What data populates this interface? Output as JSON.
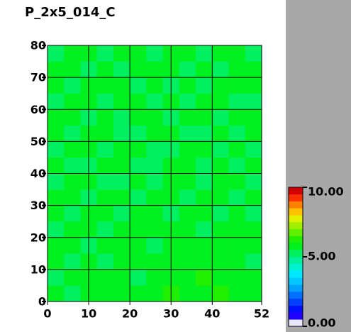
{
  "chart_data": {
    "type": "heatmap",
    "title": "P_2x5_014_C",
    "xlim": [
      0,
      52
    ],
    "ylim": [
      0,
      80
    ],
    "xticks": [
      0,
      10,
      20,
      30,
      40,
      52
    ],
    "yticks": [
      0,
      10,
      20,
      30,
      40,
      50,
      60,
      70,
      80
    ],
    "grid": true,
    "colorbar_lim": [
      0,
      10
    ],
    "colorbar_ticks": [
      {
        "value": 0,
        "label": "0.00"
      },
      {
        "value": 5,
        "label": "5.00"
      },
      {
        "value": 10,
        "label": "10.00"
      }
    ],
    "colormap": [
      "#e8e8ff",
      "#2000ff",
      "#0010ff",
      "#0040ff",
      "#0070ff",
      "#00a0ff",
      "#00c8ff",
      "#00e8ff",
      "#00f0d0",
      "#00f0a0",
      "#00f060",
      "#00f020",
      "#20f000",
      "#60f000",
      "#a0f000",
      "#e0f000",
      "#ffc000",
      "#ff8000",
      "#ff3000",
      "#d00000"
    ],
    "z": [
      [
        5.6,
        5.4,
        5.7,
        5.5,
        5.9,
        5.6,
        5.8,
        6.1,
        5.7,
        5.9,
        6.0,
        5.6,
        5.5
      ],
      [
        5.3,
        5.7,
        5.5,
        5.8,
        5.6,
        5.4,
        5.7,
        5.9,
        5.8,
        6.0,
        5.7,
        5.5,
        5.6
      ],
      [
        5.5,
        5.2,
        5.6,
        5.4,
        5.7,
        5.5,
        5.6,
        5.8,
        5.5,
        5.7,
        5.9,
        5.6,
        5.4
      ],
      [
        5.7,
        5.5,
        5.3,
        5.6,
        5.5,
        5.8,
        5.4,
        5.6,
        5.7,
        5.5,
        5.6,
        5.8,
        5.5
      ],
      [
        5.4,
        5.6,
        5.5,
        5.2,
        5.6,
        5.5,
        5.7,
        5.5,
        5.6,
        5.4,
        5.7,
        5.5,
        5.6
      ],
      [
        5.6,
        5.3,
        5.7,
        5.5,
        5.4,
        5.6,
        5.5,
        5.3,
        5.6,
        5.5,
        5.4,
        5.6,
        5.3
      ],
      [
        5.5,
        5.6,
        5.4,
        5.7,
        5.5,
        5.3,
        5.6,
        5.5,
        5.4,
        5.6,
        5.5,
        5.4,
        5.6
      ],
      [
        5.3,
        5.5,
        5.6,
        5.4,
        5.2,
        5.5,
        5.4,
        5.6,
        5.5,
        5.3,
        5.6,
        5.5,
        5.4
      ],
      [
        5.6,
        5.4,
        5.3,
        5.6,
        5.5,
        5.4,
        5.2,
        5.5,
        5.6,
        5.4,
        5.5,
        5.3,
        5.5
      ],
      [
        5.4,
        5.6,
        5.5,
        5.3,
        5.6,
        5.5,
        5.4,
        5.3,
        5.5,
        5.6,
        5.4,
        5.6,
        5.4
      ],
      [
        5.5,
        5.3,
        5.6,
        5.5,
        5.4,
        5.2,
        5.5,
        5.6,
        5.4,
        5.3,
        5.5,
        5.4,
        5.6
      ],
      [
        5.6,
        5.5,
        5.4,
        5.6,
        5.3,
        5.5,
        5.6,
        5.4,
        5.5,
        5.6,
        5.3,
        5.5,
        5.5
      ],
      [
        5.4,
        5.6,
        5.5,
        5.2,
        5.5,
        5.6,
        5.4,
        5.5,
        5.3,
        5.5,
        5.6,
        5.4,
        5.3
      ],
      [
        5.5,
        5.4,
        5.6,
        5.5,
        5.6,
        5.4,
        5.5,
        5.3,
        5.6,
        5.4,
        5.5,
        5.6,
        5.5
      ],
      [
        5.6,
        5.5,
        5.3,
        5.6,
        5.4,
        5.5,
        5.6,
        5.5,
        5.4,
        5.6,
        5.4,
        5.5,
        5.6
      ],
      [
        5.4,
        5.6,
        5.5,
        5.4,
        5.6,
        5.5,
        5.4,
        5.6,
        5.5,
        5.4,
        5.6,
        5.5,
        5.4
      ]
    ]
  }
}
